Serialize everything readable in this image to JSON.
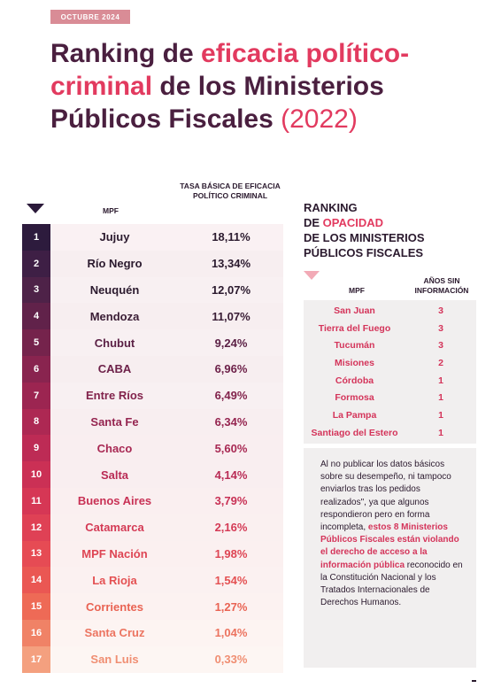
{
  "header": {
    "date_badge": "OCTUBRE 2024",
    "title_part1": "Ranking de ",
    "title_accent": "eficacia político-criminal",
    "title_part2": " de los Ministerios Públicos Fiscales ",
    "title_year": "(2022)"
  },
  "ranking_table": {
    "col_mpf": "MPF",
    "col_rate": "TASA BÁSICA DE EFICACIA POLÍTICO CRIMINAL",
    "rows": [
      {
        "rank": "1",
        "name": "Jujuy",
        "rate": "18,11%",
        "num_color": "#2d1b3d",
        "row_color": "#faf1f3",
        "text_color": "#2b1a2e"
      },
      {
        "rank": "2",
        "name": "Río Negro",
        "rate": "13,34%",
        "num_color": "#3e1f45",
        "row_color": "#f7eef0",
        "text_color": "#2b1a2e"
      },
      {
        "rank": "3",
        "name": "Neuquén",
        "rate": "12,07%",
        "num_color": "#4e2248",
        "row_color": "#f8f0f2",
        "text_color": "#2b1a2e"
      },
      {
        "rank": "4",
        "name": "Mendoza",
        "rate": "11,07%",
        "num_color": "#61224a",
        "row_color": "#f7eef0",
        "text_color": "#3a1d35"
      },
      {
        "rank": "5",
        "name": "Chubut",
        "rate": "9,24%",
        "num_color": "#75234c",
        "row_color": "#f8f0f2",
        "text_color": "#5a1f44"
      },
      {
        "rank": "6",
        "name": "CABA",
        "rate": "6,96%",
        "num_color": "#89244f",
        "row_color": "#f7eef0",
        "text_color": "#6d2149"
      },
      {
        "rank": "7",
        "name": "Entre Ríos",
        "rate": "6,49%",
        "num_color": "#9c2551",
        "row_color": "#f8f0f2",
        "text_color": "#82234c"
      },
      {
        "rank": "8",
        "name": "Santa Fe",
        "rate": "6,34%",
        "num_color": "#ad2853",
        "row_color": "#f8eef0",
        "text_color": "#952550"
      },
      {
        "rank": "9",
        "name": "Chaco",
        "rate": "5,60%",
        "num_color": "#bd2b55",
        "row_color": "#f9eef0",
        "text_color": "#a82853"
      },
      {
        "rank": "10",
        "name": "Salta",
        "rate": "4,14%",
        "num_color": "#cb3055",
        "row_color": "#f9eef0",
        "text_color": "#b92b55"
      },
      {
        "rank": "11",
        "name": "Buenos Aires",
        "rate": "3,79%",
        "num_color": "#d63755",
        "row_color": "#faeff0",
        "text_color": "#c83155"
      },
      {
        "rank": "12",
        "name": "Catamarca",
        "rate": "2,16%",
        "num_color": "#df4155",
        "row_color": "#faf0f0",
        "text_color": "#d43a55"
      },
      {
        "rank": "13",
        "name": "MPF Nación",
        "rate": "1,98%",
        "num_color": "#e64b54",
        "row_color": "#fbf0f0",
        "text_color": "#de4554"
      },
      {
        "rank": "14",
        "name": "La Rioja",
        "rate": "1,54%",
        "num_color": "#ea5753",
        "row_color": "#fbf1f1",
        "text_color": "#e45153"
      },
      {
        "rank": "15",
        "name": "Corrientes",
        "rate": "1,27%",
        "num_color": "#ee6a56",
        "row_color": "#fcf2f1",
        "text_color": "#e96353"
      },
      {
        "rank": "16",
        "name": "Santa Cruz",
        "rate": "1,04%",
        "num_color": "#f08266",
        "row_color": "#fdf4f2",
        "text_color": "#ec7460"
      },
      {
        "rank": "17",
        "name": "San Luis",
        "rate": "0,33%",
        "num_color": "#f4a07f",
        "row_color": "#fdf6f3",
        "text_color": "#f08e72"
      }
    ]
  },
  "opacity": {
    "title_line1": "RANKING",
    "title_prefix": "DE ",
    "title_accent": "OPACIDAD",
    "title_line3": "DE LOS MINISTERIOS",
    "title_line4": "PÚBLICOS FISCALES",
    "col_mpf": "MPF",
    "col_years": "AÑOS SIN INFORMACIÓN",
    "rows": [
      {
        "name": "San Juan",
        "years": "3"
      },
      {
        "name": "Tierra del Fuego",
        "years": "3"
      },
      {
        "name": "Tucumán",
        "years": "3"
      },
      {
        "name": "Misiones",
        "years": "2"
      },
      {
        "name": "Córdoba",
        "years": "1"
      },
      {
        "name": "Formosa",
        "years": "1"
      },
      {
        "name": "La Pampa",
        "years": "1"
      },
      {
        "name": "Santiago del Estero",
        "years": "1"
      }
    ]
  },
  "note": {
    "text1": "Al no publicar los datos básicos sobre su desempeño, ni tampoco enviarlos tras los pedidos realizados\", ya que algunos respondieron pero en forma incompleta, ",
    "text_strong": "estos 8 Ministerios Públicos Fiscales están violando el derecho de acceso a la información pública",
    "text2": " reconocido en la Constitución Nacional y los Tratados Internacionales de Derechos Humanos."
  }
}
